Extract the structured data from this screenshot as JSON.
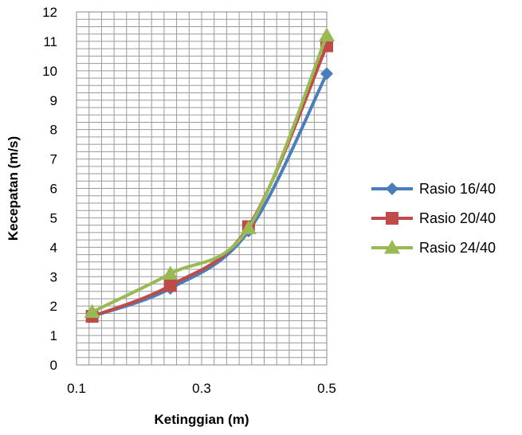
{
  "chart_data": {
    "type": "line",
    "xlabel": "Ketinggian (m)",
    "ylabel": "Kecepatan (m/s)",
    "xlim": [
      0.1,
      0.5
    ],
    "ylim": [
      0,
      12
    ],
    "x_ticks": [
      "0.1",
      "0.3",
      "0.5"
    ],
    "x_tick_values": [
      0.1,
      0.3,
      0.5
    ],
    "y_ticks": [
      "0",
      "1",
      "2",
      "3",
      "4",
      "5",
      "6",
      "7",
      "8",
      "9",
      "10",
      "11",
      "12"
    ],
    "grid": true,
    "legend_position": "right",
    "x": [
      0.125,
      0.25,
      0.375,
      0.5
    ],
    "series": [
      {
        "name": "Rasio 16/40",
        "values": [
          1.65,
          2.6,
          4.55,
          9.9
        ],
        "color": "#4a7ebb",
        "marker": "diamond"
      },
      {
        "name": "Rasio 20/40",
        "values": [
          1.65,
          2.7,
          4.7,
          10.85
        ],
        "color": "#be4b48",
        "marker": "square"
      },
      {
        "name": "Rasio 24/40",
        "values": [
          1.8,
          3.1,
          4.65,
          11.2
        ],
        "color": "#98b954",
        "marker": "triangle"
      }
    ]
  }
}
